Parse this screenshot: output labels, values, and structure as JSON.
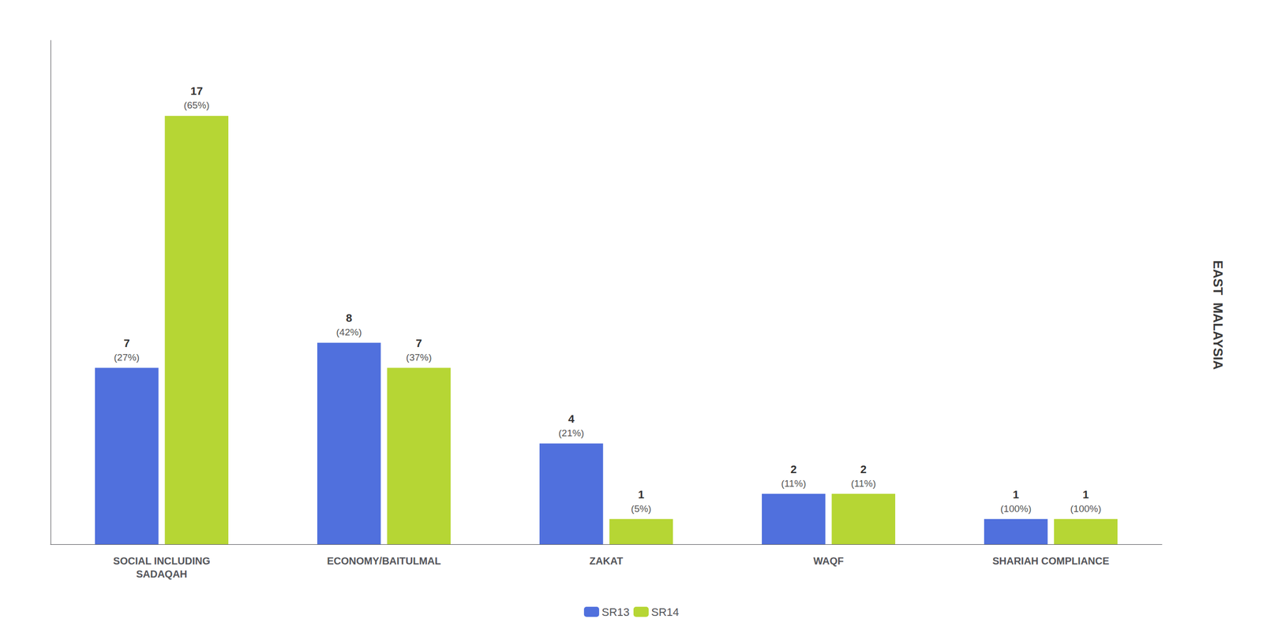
{
  "chart_data": {
    "type": "bar",
    "categories": [
      "SOCIAL INCLUDING\nSADAQAH",
      "ECONOMY/BAITULMAL",
      "ZAKAT",
      "WAQF",
      "SHARIAH COMPLIANCE"
    ],
    "series": [
      {
        "name": "SR13",
        "values": [
          7,
          8,
          4,
          2,
          1
        ],
        "percent_labels": [
          "(27%)",
          "(42%)",
          "(21%)",
          "(11%)",
          "(100%)"
        ]
      },
      {
        "name": "SR14",
        "values": [
          17,
          7,
          1,
          2,
          1
        ],
        "percent_labels": [
          "(65%)",
          "(37%)",
          "(5%)",
          "(11%)",
          "(100%)"
        ]
      }
    ],
    "ylim": [
      0,
      20
    ],
    "grid": false,
    "legend": "bottom",
    "data_labels": true,
    "tick_labels": "x",
    "annotation": "EAST  MALAYSIA"
  }
}
